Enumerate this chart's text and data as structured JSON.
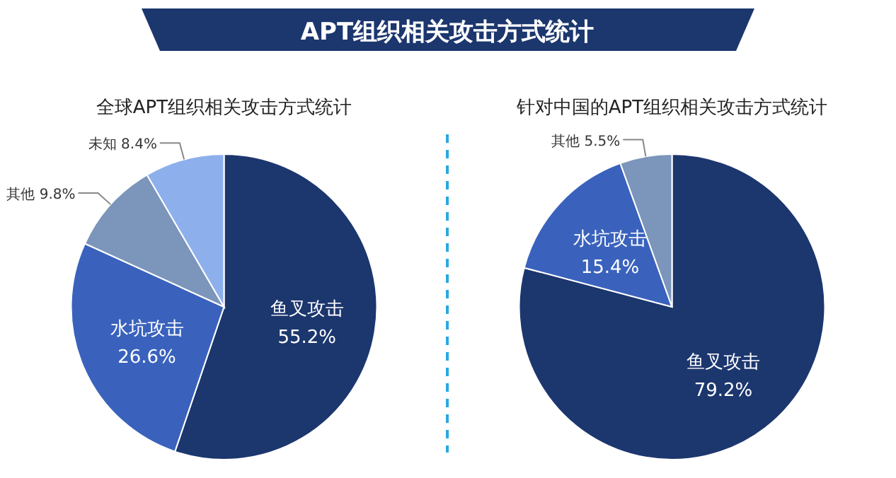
{
  "chart_data": [
    {
      "type": "other",
      "title": "APT组织相关攻击方式统计"
    },
    {
      "type": "pie",
      "title": "全球APT组织相关攻击方式统计",
      "categories": [
        "鱼叉攻击",
        "水坑攻击",
        "其他",
        "未知"
      ],
      "values": [
        55.2,
        26.6,
        9.8,
        8.4
      ],
      "value_labels": [
        "55.2%",
        "26.6%",
        "9.8%",
        "8.4%"
      ],
      "colors": [
        "#1c366e",
        "#3a62bd",
        "#7b95bb",
        "#8db0ec"
      ]
    },
    {
      "type": "pie",
      "title": "针对中国的APT组织相关攻击方式统计",
      "categories": [
        "鱼叉攻击",
        "水坑攻击",
        "其他"
      ],
      "values": [
        79.2,
        15.4,
        5.5
      ],
      "value_labels": [
        "79.2%",
        "15.4%",
        "5.5%"
      ],
      "colors": [
        "#1c366e",
        "#3a62bd",
        "#7b95bb"
      ]
    }
  ]
}
